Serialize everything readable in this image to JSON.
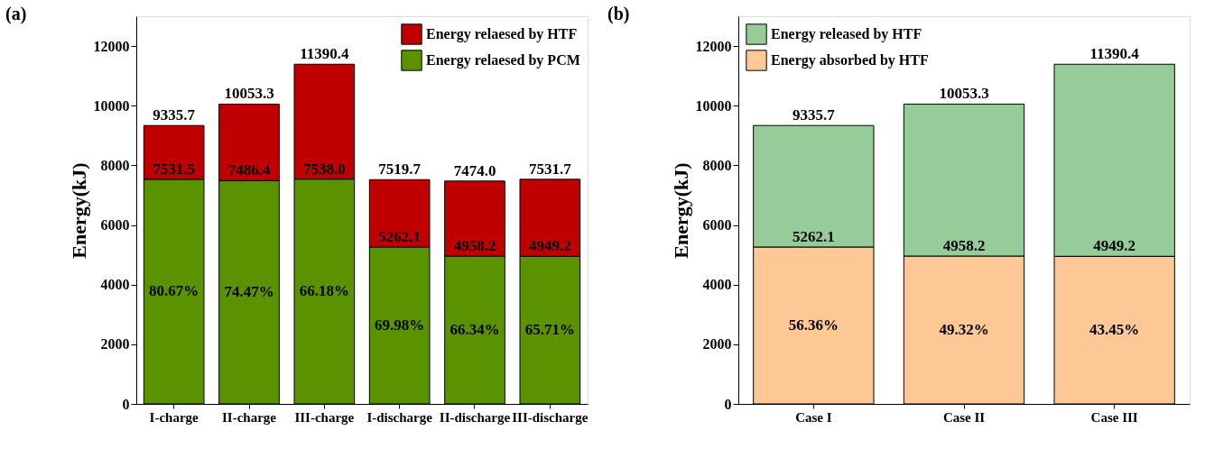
{
  "chart_data": [
    {
      "type": "bar",
      "title": "(a)",
      "ylabel": "Energy(kJ)",
      "categories": [
        "I-charge",
        "II-charge",
        "III-charge",
        "I-discharge",
        "II-discharge",
        "III-discharge"
      ],
      "stacked": true,
      "series": [
        {
          "name": "Energy relaesed by PCM",
          "color": "#5b9200",
          "values": [
            7531.5,
            7486.4,
            7538.0,
            5262.1,
            4958.2,
            4949.2
          ],
          "value_labels": [
            "7531.5",
            "7486.4",
            "7538.0",
            "5262.1",
            "4958.2",
            "4949.2"
          ]
        },
        {
          "name": "Energy relaesed by HTF",
          "color": "#c00000",
          "values": [
            1804.2,
            2566.9,
            3852.4,
            2257.6,
            2515.8,
            2582.5
          ]
        }
      ],
      "totals": [
        "9335.7",
        "10053.3",
        "11390.4",
        "7519.7",
        "7474.0",
        "7531.7"
      ],
      "annotations": [
        "80.67%",
        "74.47%",
        "66.18%",
        "69.98%",
        "66.34%",
        "65.71%"
      ],
      "ylim": [
        0,
        13000
      ],
      "yticks": [
        0,
        2000,
        4000,
        6000,
        8000,
        10000,
        12000
      ],
      "legend": "top right",
      "grid": false
    },
    {
      "type": "bar",
      "title": "(b)",
      "ylabel": "Energy(kJ)",
      "categories": [
        "Case I",
        "Case II",
        "Case III"
      ],
      "stacked": true,
      "series": [
        {
          "name": "Energy absorbed by HTF",
          "color": "#fdc896",
          "values": [
            5262.1,
            4958.2,
            4949.2
          ],
          "value_labels": [
            "5262.1",
            "4958.2",
            "4949.2"
          ]
        },
        {
          "name": "Energy released by HTF",
          "color": "#95cc99",
          "values": [
            4073.6,
            5095.1,
            6441.2
          ]
        }
      ],
      "totals": [
        "9335.7",
        "10053.3",
        "11390.4"
      ],
      "annotations": [
        "56.36%",
        "49.32%",
        "43.45%"
      ],
      "ylim": [
        0,
        13000
      ],
      "yticks": [
        0,
        2000,
        4000,
        6000,
        8000,
        10000,
        12000
      ],
      "legend": "top left",
      "grid": false
    }
  ]
}
